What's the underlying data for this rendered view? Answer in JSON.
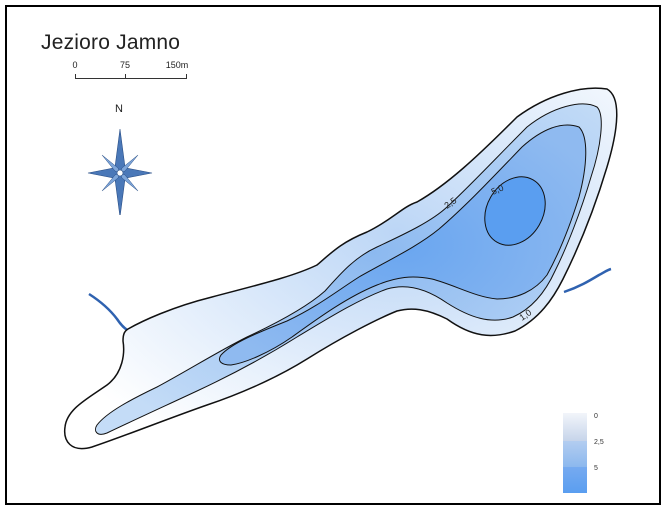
{
  "map": {
    "title": "Jezioro Jamno",
    "scale_bar": {
      "labels": [
        "0",
        "75",
        "150m"
      ]
    },
    "north_arrow": {
      "label": "N",
      "icon": "compass-rose-icon"
    },
    "contour_labels": {
      "shallow": "1,0",
      "middle": "2,5",
      "deep": "5,0"
    },
    "legend": {
      "labels": [
        "0",
        "2,5",
        "5"
      ]
    },
    "colors": {
      "shore_outline": "#111111",
      "depth_shallow": "#e8f0fb",
      "depth_mid": "#9cc4f2",
      "depth_deep": "#5a9ef0",
      "river": "#2f62b0",
      "compass": "#4a78b8"
    }
  }
}
